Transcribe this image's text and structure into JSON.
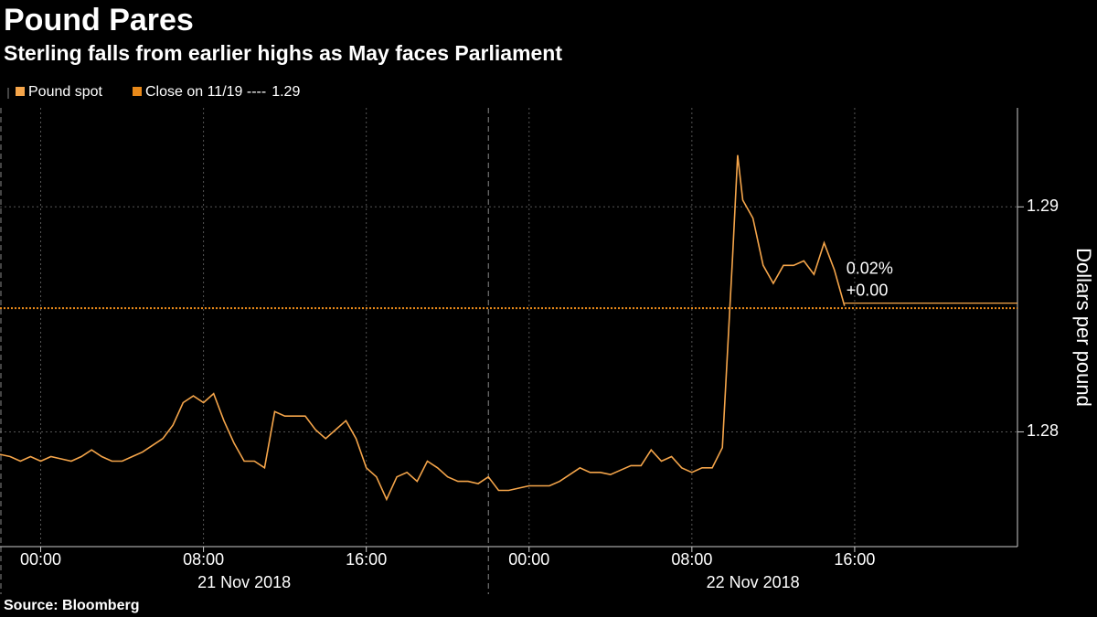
{
  "chart_data": {
    "type": "line",
    "title": "Pound Pares",
    "subtitle": "Sterling falls from earlier highs as May faces Parliament",
    "y_axis_label": "Dollars per pound",
    "source": "Source: Bloomberg",
    "x": [
      "2018-11-20 22:00",
      "2018-11-20 22:30",
      "2018-11-20 23:00",
      "2018-11-20 23:30",
      "2018-11-21 00:00",
      "2018-11-21 00:30",
      "2018-11-21 01:00",
      "2018-11-21 01:30",
      "2018-11-21 02:00",
      "2018-11-21 02:30",
      "2018-11-21 03:00",
      "2018-11-21 03:30",
      "2018-11-21 04:00",
      "2018-11-21 04:30",
      "2018-11-21 05:00",
      "2018-11-21 05:30",
      "2018-11-21 06:00",
      "2018-11-21 06:30",
      "2018-11-21 07:00",
      "2018-11-21 07:30",
      "2018-11-21 08:00",
      "2018-11-21 08:30",
      "2018-11-21 09:00",
      "2018-11-21 09:30",
      "2018-11-21 10:00",
      "2018-11-21 10:30",
      "2018-11-21 11:00",
      "2018-11-21 11:30",
      "2018-11-21 12:00",
      "2018-11-21 12:30",
      "2018-11-21 13:00",
      "2018-11-21 13:30",
      "2018-11-21 14:00",
      "2018-11-21 14:30",
      "2018-11-21 15:00",
      "2018-11-21 15:30",
      "2018-11-21 16:00",
      "2018-11-21 16:30",
      "2018-11-21 17:00",
      "2018-11-21 17:30",
      "2018-11-21 18:00",
      "2018-11-21 18:30",
      "2018-11-21 19:00",
      "2018-11-21 19:30",
      "2018-11-21 20:00",
      "2018-11-21 20:30",
      "2018-11-21 21:00",
      "2018-11-21 21:30",
      "2018-11-21 22:00",
      "2018-11-21 22:30",
      "2018-11-21 23:00",
      "2018-11-21 23:30",
      "2018-11-22 00:00",
      "2018-11-22 00:30",
      "2018-11-22 01:00",
      "2018-11-22 01:30",
      "2018-11-22 02:00",
      "2018-11-22 02:30",
      "2018-11-22 03:00",
      "2018-11-22 03:30",
      "2018-11-22 04:00",
      "2018-11-22 04:30",
      "2018-11-22 05:00",
      "2018-11-22 05:30",
      "2018-11-22 06:00",
      "2018-11-22 06:30",
      "2018-11-22 07:00",
      "2018-11-22 07:30",
      "2018-11-22 08:00",
      "2018-11-22 08:30",
      "2018-11-22 09:00",
      "2018-11-22 09:30",
      "2018-11-22 10:00",
      "2018-11-22 10:15",
      "2018-11-22 10:30",
      "2018-11-22 11:00",
      "2018-11-22 11:30",
      "2018-11-22 12:00",
      "2018-11-22 12:30",
      "2018-11-22 13:00",
      "2018-11-22 13:30",
      "2018-11-22 14:00",
      "2018-11-22 14:30",
      "2018-11-22 15:00",
      "2018-11-22 15:30"
    ],
    "series": [
      {
        "name": "Pound spot",
        "color": "#f5a54a",
        "values": [
          1.279,
          1.2789,
          1.2787,
          1.2789,
          1.2787,
          1.2789,
          1.2788,
          1.2787,
          1.2789,
          1.2792,
          1.2789,
          1.2787,
          1.2787,
          1.2789,
          1.2791,
          1.2794,
          1.2797,
          1.2803,
          1.2813,
          1.2816,
          1.2813,
          1.2817,
          1.2805,
          1.2795,
          1.2787,
          1.2787,
          1.2784,
          1.2809,
          1.2807,
          1.2807,
          1.2807,
          1.2801,
          1.2797,
          1.2801,
          1.2805,
          1.2797,
          1.2784,
          1.278,
          1.277,
          1.278,
          1.2782,
          1.2778,
          1.2787,
          1.2784,
          1.278,
          1.2778,
          1.2778,
          1.2777,
          1.278,
          1.2774,
          1.2774,
          1.2775,
          1.2776,
          1.2776,
          1.2776,
          1.2778,
          1.2781,
          1.2784,
          1.2782,
          1.2782,
          1.2781,
          1.2783,
          1.2785,
          1.2785,
          1.2792,
          1.2787,
          1.2789,
          1.2784,
          1.2782,
          1.2784,
          1.2784,
          1.2793,
          1.2878,
          1.2923,
          1.2903,
          1.2895,
          1.2874,
          1.2866,
          1.2874,
          1.2874,
          1.2876,
          1.287,
          1.2884,
          1.2872,
          1.2856
        ]
      }
    ],
    "close": {
      "name": "Close on 11/19 ----",
      "value": 1.2855,
      "value_label": "1.29",
      "color": "#e8891a"
    },
    "annotations": [
      "0.02%",
      "+0.00"
    ],
    "xlim": [
      "2018-11-20 22:00",
      "2018-11-23 00:00"
    ],
    "xticks": [
      {
        "value": "2018-11-21 00:00",
        "label": "00:00"
      },
      {
        "value": "2018-11-21 08:00",
        "label": "08:00"
      },
      {
        "value": "2018-11-21 16:00",
        "label": "16:00"
      },
      {
        "value": "2018-11-22 00:00",
        "label": "00:00"
      },
      {
        "value": "2018-11-22 08:00",
        "label": "08:00"
      },
      {
        "value": "2018-11-22 16:00",
        "label": "16:00"
      }
    ],
    "x_group_labels": [
      {
        "value": [
          "2018-11-20 22:00",
          "2018-11-21 22:00"
        ],
        "label": "21 Nov 2018"
      },
      {
        "value": [
          "2018-11-21 22:00",
          "2018-11-23 00:00"
        ],
        "label": "22 Nov 2018"
      }
    ],
    "session_breaks": [
      "2018-11-20 22:00",
      "2018-11-21 22:00"
    ],
    "ylim": [
      1.2749,
      1.2944
    ],
    "yticks": [
      1.28,
      1.29
    ],
    "grid": true
  }
}
